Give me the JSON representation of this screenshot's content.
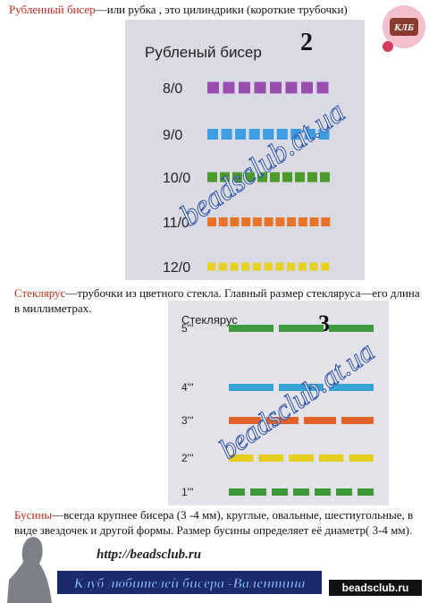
{
  "paragraphs": [
    {
      "term": "Рубленный бисер",
      "text": "—или рубка , это цилиндрики (короткие трубочки)"
    },
    {
      "term": "Стеклярус",
      "text": "—трубочки из цветного стекла. Главный размер стекляруса—его длина в миллиметрах."
    },
    {
      "term": "Бусины",
      "text": "—всегда крупнее бисера (3 -4 мм), круглые, овальные, шестиугольные, в виде звездочек и другой формы. Размер бусины определяет её диаметр( 3-4 мм)."
    }
  ],
  "figures": [
    {
      "title": "Рубленый бисер",
      "number": "2",
      "rows": [
        "8/0",
        "9/0",
        "10/0",
        "11/0",
        "12/0"
      ],
      "watermark": "beadsclub.at.ua"
    },
    {
      "title": "Стеклярус",
      "number": "3",
      "rows": [
        "5'''",
        "4'''",
        "3'''",
        "2'''",
        "1'''"
      ],
      "watermark": "beadsclub.at.ua"
    }
  ],
  "footer": {
    "logo": "КЛБ",
    "url": "http://beadsclub.ru",
    "banner": "Клуб любителей бисера -Валентина",
    "site": "beadsclub.ru"
  }
}
